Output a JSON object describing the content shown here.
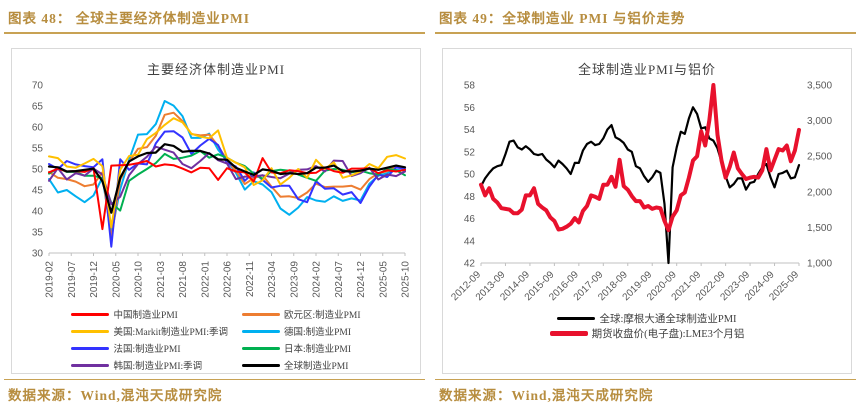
{
  "accent_color": "#b78d3f",
  "figures": [
    {
      "header": "图表 48：  全球主要经济体制造业PMI",
      "source": "数据来源：Wind,混沌天成研究院"
    },
    {
      "header": "图表 49：全球制造业 PMI 与铝价走势",
      "source": "数据来源：Wind,混沌天成研究院"
    }
  ],
  "chart_data": [
    {
      "type": "line",
      "title": "主要经济体制造业PMI",
      "x_tick_labels": [
        "2019-02",
        "2019-07",
        "2019-12",
        "2020-05",
        "2020-10",
        "2021-03",
        "2021-08",
        "2022-01",
        "2022-06",
        "2022-11",
        "2023-04",
        "2023-09",
        "2024-02",
        "2024-07",
        "2024-12",
        "2025-05",
        "2025-10"
      ],
      "x_start": "2019-02",
      "x_step_months": 2,
      "ylim": [
        30,
        70
      ],
      "y_ticks": [
        30,
        35,
        40,
        45,
        50,
        55,
        60,
        65,
        70
      ],
      "grid": false,
      "legend_position": "bottom",
      "series": [
        {
          "name": "德国:制造业PMI",
          "color": "#00b0f0",
          "width": 2,
          "values": [
            47.6,
            44.4,
            45.0,
            43.5,
            42.1,
            43.7,
            48.0,
            34.5,
            45.2,
            52.2,
            58.2,
            58.3,
            60.7,
            66.2,
            65.1,
            62.6,
            57.4,
            57.4,
            58.4,
            54.6,
            52.0,
            49.1,
            45.1,
            47.1,
            46.3,
            44.5,
            40.6,
            39.1,
            40.8,
            43.3,
            42.5,
            42.2,
            43.5,
            42.4,
            43.0,
            42.5,
            46.5,
            48.4,
            49.0,
            49.8,
            49.6
          ]
        },
        {
          "name": "欧元区:制造业PMI",
          "color": "#ed7d31",
          "width": 2,
          "values": [
            49.3,
            47.9,
            47.6,
            47.0,
            45.9,
            46.3,
            49.2,
            33.4,
            47.4,
            51.7,
            54.8,
            55.2,
            57.9,
            62.9,
            63.4,
            61.4,
            58.3,
            58.0,
            58.2,
            55.5,
            52.1,
            49.6,
            46.4,
            47.8,
            48.5,
            45.8,
            43.4,
            43.5,
            43.1,
            44.4,
            46.5,
            45.7,
            45.8,
            45.8,
            46.0,
            45.1,
            47.6,
            49.0,
            49.5,
            50.7,
            50.0
          ]
        },
        {
          "name": "法国:制造业PMI",
          "color": "#3333ff",
          "width": 2,
          "values": [
            51.2,
            50.0,
            51.9,
            51.1,
            50.7,
            50.4,
            52.3,
            31.5,
            52.3,
            49.8,
            51.3,
            51.1,
            56.1,
            58.9,
            59.0,
            57.5,
            53.6,
            55.6,
            57.2,
            55.7,
            51.4,
            50.6,
            47.2,
            49.2,
            47.4,
            45.6,
            46.0,
            46.0,
            42.8,
            42.1,
            47.1,
            45.3,
            45.4,
            43.9,
            44.5,
            41.9,
            45.8,
            48.7,
            48.1,
            50.4,
            50.0
          ]
        },
        {
          "name": "日本:制造业PMI",
          "color": "#00b050",
          "width": 2,
          "values": [
            48.9,
            50.2,
            49.3,
            49.3,
            48.4,
            48.4,
            47.8,
            41.9,
            40.1,
            47.2,
            48.7,
            50.0,
            51.4,
            53.6,
            52.4,
            52.7,
            53.2,
            54.3,
            52.7,
            53.5,
            52.7,
            51.5,
            50.7,
            48.9,
            47.7,
            49.5,
            49.8,
            49.6,
            48.7,
            47.9,
            47.2,
            49.6,
            50.0,
            49.8,
            49.2,
            49.6,
            49.0,
            48.7,
            50.1,
            49.7,
            48.5
          ]
        },
        {
          "name": "韩国:制造业PMI:季调",
          "color": "#7030a0",
          "width": 2,
          "values": [
            47.2,
            50.2,
            47.5,
            49.0,
            48.4,
            50.1,
            48.7,
            41.6,
            43.4,
            48.5,
            51.2,
            52.9,
            55.3,
            54.6,
            53.9,
            51.2,
            50.2,
            51.9,
            53.8,
            52.1,
            51.3,
            47.6,
            48.2,
            48.2,
            48.5,
            48.1,
            47.8,
            48.9,
            49.8,
            49.9,
            50.7,
            49.4,
            52.0,
            51.9,
            48.3,
            49.0,
            50.3,
            47.5,
            48.7,
            48.3,
            49.4
          ]
        },
        {
          "name": "美国:Markit制造业PMI:季调",
          "color": "#ffc000",
          "width": 2,
          "values": [
            53.0,
            52.6,
            50.6,
            50.3,
            51.3,
            52.4,
            50.7,
            36.1,
            49.8,
            53.1,
            53.4,
            57.1,
            58.6,
            60.5,
            62.1,
            61.1,
            58.4,
            57.7,
            57.3,
            59.2,
            52.7,
            51.5,
            50.4,
            46.2,
            47.3,
            50.2,
            46.3,
            47.9,
            50.0,
            47.9,
            52.2,
            50.0,
            51.6,
            47.9,
            48.5,
            49.4,
            51.2,
            50.2,
            52.9,
            53.3,
            52.5
          ]
        },
        {
          "name": "中国制造业PMI",
          "color": "#ff0000",
          "width": 2,
          "values": [
            49.2,
            50.1,
            49.4,
            49.5,
            49.3,
            50.2,
            35.7,
            50.8,
            50.9,
            51.0,
            51.4,
            51.9,
            50.6,
            51.1,
            50.9,
            50.1,
            49.2,
            50.3,
            50.2,
            47.4,
            50.2,
            49.4,
            49.2,
            47.0,
            52.6,
            49.2,
            49.0,
            49.7,
            49.5,
            49.0,
            49.1,
            50.4,
            49.5,
            49.1,
            50.1,
            50.1,
            50.2,
            49.0,
            49.7,
            49.4,
            49.8
          ]
        },
        {
          "name": "全球制造业PMI",
          "color": "#000000",
          "width": 2.2,
          "values": [
            50.6,
            50.4,
            49.4,
            49.5,
            49.8,
            50.1,
            47.1,
            39.6,
            47.9,
            51.8,
            53.0,
            53.8,
            53.9,
            55.9,
            55.5,
            54.1,
            54.3,
            54.3,
            53.7,
            52.3,
            52.2,
            50.3,
            49.4,
            48.6,
            49.9,
            49.6,
            48.8,
            49.0,
            48.8,
            49.0,
            50.3,
            50.3,
            50.8,
            49.5,
            49.4,
            49.6,
            50.1,
            49.8,
            50.3,
            50.8,
            50.4
          ]
        }
      ]
    },
    {
      "type": "line-dual-axis",
      "title": "全球制造业PMI与铝价",
      "x_tick_labels": [
        "2012-09",
        "2013-09",
        "2014-09",
        "2015-09",
        "2016-09",
        "2017-09",
        "2018-09",
        "2019-09",
        "2020-09",
        "2021-09",
        "2022-09",
        "2023-09",
        "2024-09",
        "2025-09"
      ],
      "x_start": "2012-09",
      "x_step_months": 2,
      "ylim_left": [
        42,
        58
      ],
      "y_ticks_left": [
        42,
        44,
        46,
        48,
        50,
        52,
        54,
        56,
        58
      ],
      "ylim_right": [
        1000,
        3500
      ],
      "y_ticks_right": [
        1000,
        1500,
        2000,
        2500,
        3000,
        3500
      ],
      "grid": false,
      "legend_position": "bottom",
      "series": [
        {
          "name": "全球:摩根大通全球制造业PMI",
          "axis": "left",
          "color": "#000000",
          "width": 2.2,
          "values": [
            48.9,
            49.6,
            50.1,
            50.5,
            50.7,
            50.8,
            51.8,
            52.9,
            53.0,
            52.4,
            52.2,
            52.5,
            52.2,
            51.8,
            51.7,
            51.8,
            51.3,
            51.0,
            50.6,
            51.2,
            50.9,
            50.5,
            50.0,
            51.0,
            51.0,
            52.1,
            52.7,
            52.9,
            52.6,
            52.7,
            53.2,
            54.0,
            54.4,
            53.3,
            53.1,
            52.8,
            52.2,
            52.0,
            50.7,
            50.5,
            49.8,
            49.3,
            49.7,
            50.3,
            50.1,
            47.3,
            39.6,
            50.6,
            52.4,
            53.8,
            53.6,
            55.0,
            56.0,
            55.4,
            54.1,
            54.2,
            53.2,
            53.0,
            52.3,
            51.1,
            49.8,
            48.8,
            49.1,
            49.6,
            49.6,
            48.6,
            49.2,
            49.3,
            50.0,
            50.6,
            50.9,
            49.7,
            48.8,
            50.0,
            50.1,
            50.3,
            49.6,
            49.7,
            50.8
          ]
        },
        {
          "name": "期货收盘价(电子盘):LME3个月铝",
          "axis": "right",
          "color": "#e8112d",
          "width": 4,
          "values": [
            2100,
            1950,
            2050,
            1900,
            1850,
            1770,
            1760,
            1750,
            1700,
            1700,
            1750,
            1950,
            1950,
            2050,
            1830,
            1780,
            1740,
            1640,
            1590,
            1470,
            1480,
            1510,
            1550,
            1630,
            1570,
            1730,
            1800,
            1950,
            1930,
            1900,
            2100,
            2100,
            2210,
            2070,
            2450,
            2080,
            2030,
            1940,
            1870,
            1870,
            1780,
            1800,
            1760,
            1780,
            1770,
            1590,
            1460,
            1650,
            1740,
            1950,
            1990,
            2200,
            2440,
            2500,
            2850,
            2650,
            3000,
            3850,
            2800,
            2440,
            2200,
            2350,
            2550,
            2330,
            2250,
            2180,
            2200,
            2210,
            2200,
            2300,
            2600,
            2300,
            2450,
            2600,
            2580,
            2650,
            2430,
            2580,
            2870
          ]
        }
      ]
    }
  ]
}
